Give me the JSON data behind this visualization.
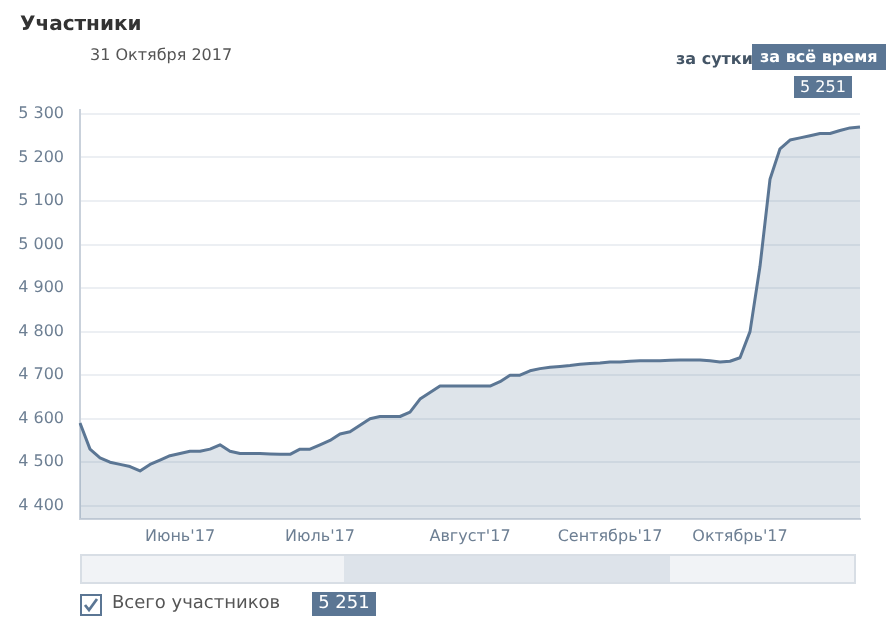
{
  "chart_data": {
    "type": "area",
    "title": "Участники",
    "subtitle": "31 Октября 2017",
    "annotations": [
      "за сутки",
      "за всё время",
      "5 251",
      "5 251"
    ],
    "categories": [
      null,
      null,
      null,
      null,
      null,
      null,
      null,
      null,
      null,
      null,
      "Июнь'17",
      null,
      null,
      null,
      null,
      null,
      null,
      null,
      null,
      null,
      null,
      null,
      null,
      null,
      "Июль'17",
      null,
      null,
      null,
      null,
      null,
      null,
      null,
      null,
      null,
      null,
      null,
      null,
      null,
      null,
      "Август'17",
      null,
      null,
      null,
      null,
      null,
      null,
      null,
      null,
      null,
      null,
      null,
      null,
      null,
      "Сентябрь'17",
      null,
      null,
      null,
      null,
      null,
      null,
      null,
      null,
      null,
      null,
      null,
      null,
      "Октябрь'17",
      null,
      null,
      null,
      null,
      null,
      null,
      null,
      null,
      null,
      null,
      null,
      null
    ],
    "series": [
      {
        "name": "Всего участников",
        "color": "#5b7694",
        "values": [
          4590,
          4530,
          4510,
          4500,
          4495,
          4490,
          4480,
          4495,
          4505,
          4515,
          4520,
          4525,
          4525,
          4530,
          4540,
          4525,
          4520,
          4520,
          4520,
          4519,
          4518,
          4518,
          4530,
          4530,
          4540,
          4550,
          4565,
          4570,
          4585,
          4600,
          4605,
          4605,
          4605,
          4615,
          4645,
          4660,
          4675,
          4675,
          4675,
          4675,
          4675,
          4675,
          4685,
          4700,
          4700,
          4710,
          4715,
          4718,
          4720,
          4722,
          4725,
          4727,
          4728,
          4730,
          4730,
          4732,
          4733,
          4733,
          4733,
          4734,
          4735,
          4735,
          4735,
          4733,
          4730,
          4732,
          4740,
          4800,
          4950,
          5150,
          5220,
          5240,
          5245,
          5250,
          5255,
          5255,
          5262,
          5268,
          5270
        ]
      }
    ],
    "ylim": [
      4370,
      5310
    ],
    "yticks": [
      {
        "value": 4400,
        "label": "4 400"
      },
      {
        "value": 4500,
        "label": "4 500"
      },
      {
        "value": 4600,
        "label": "4 600"
      },
      {
        "value": 4700,
        "label": "4 700"
      },
      {
        "value": 4800,
        "label": "4 800"
      },
      {
        "value": 4900,
        "label": "4 900"
      },
      {
        "value": 5000,
        "label": "5 000"
      },
      {
        "value": 5100,
        "label": "5 100"
      },
      {
        "value": 5200,
        "label": "5 200"
      },
      {
        "value": 5300,
        "label": "5 300"
      }
    ],
    "grid": "y",
    "legend": "bottom left",
    "marker": "none"
  }
}
